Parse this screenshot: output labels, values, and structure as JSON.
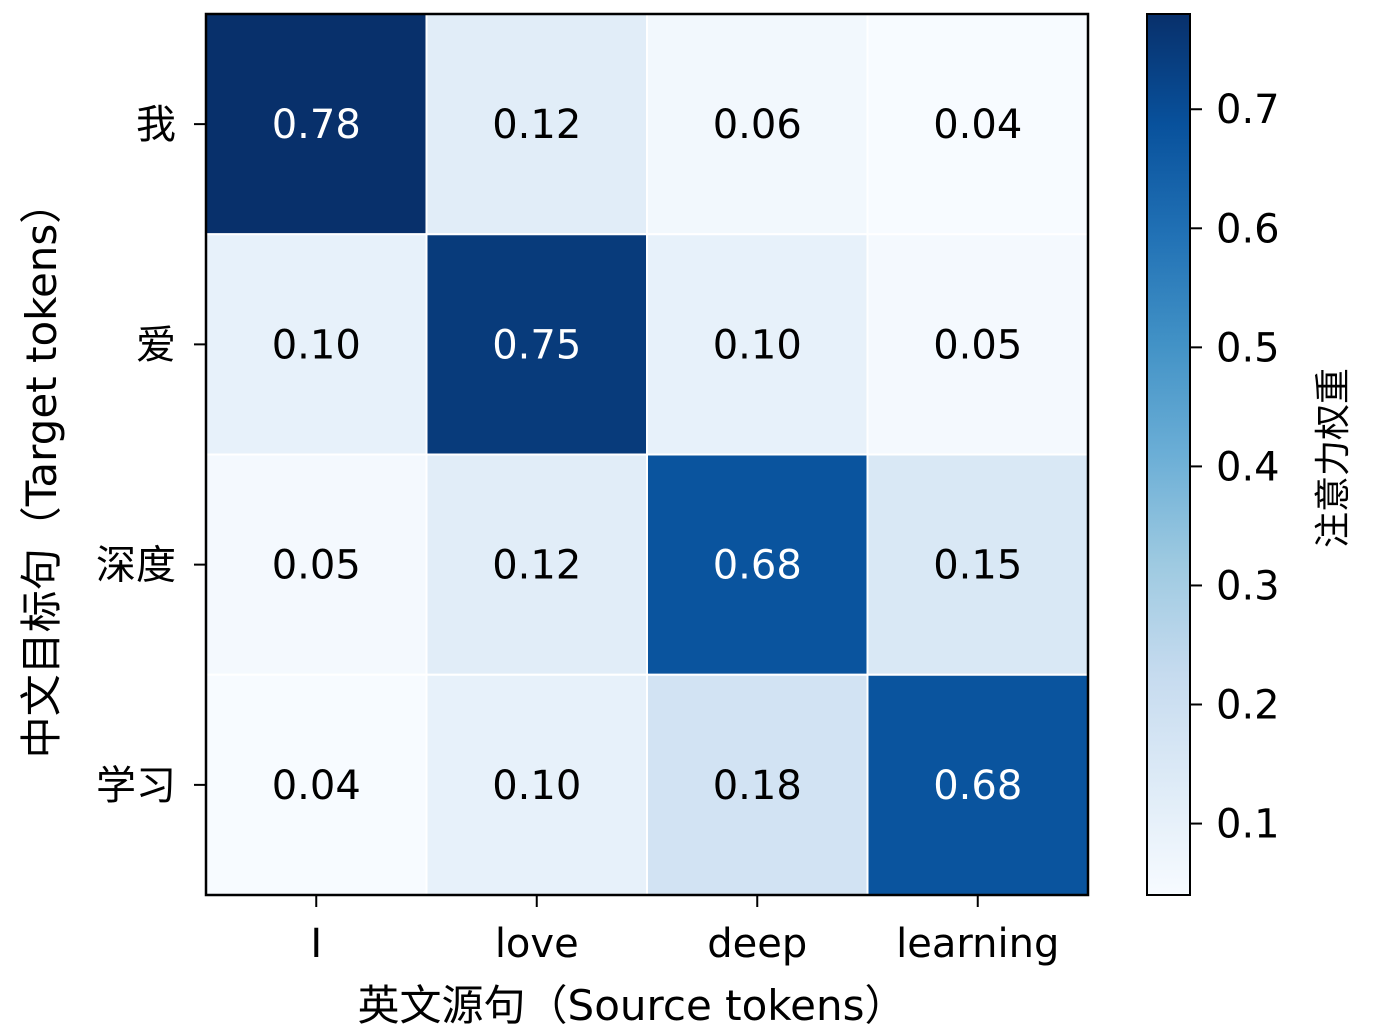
{
  "chart_data": {
    "type": "heatmap",
    "x_categories": [
      "I",
      "love",
      "deep",
      "learning"
    ],
    "y_categories": [
      "我",
      "爱",
      "深度",
      "学习"
    ],
    "values": [
      [
        0.78,
        0.12,
        0.06,
        0.04
      ],
      [
        0.1,
        0.75,
        0.1,
        0.05
      ],
      [
        0.05,
        0.12,
        0.68,
        0.15
      ],
      [
        0.04,
        0.1,
        0.18,
        0.68
      ]
    ],
    "value_labels": [
      [
        "0.78",
        "0.12",
        "0.06",
        "0.04"
      ],
      [
        "0.10",
        "0.75",
        "0.10",
        "0.05"
      ],
      [
        "0.05",
        "0.12",
        "0.68",
        "0.15"
      ],
      [
        "0.04",
        "0.10",
        "0.18",
        "0.68"
      ]
    ],
    "xlabel": "英文源句（Source tokens）",
    "ylabel": "中文目标句（Target tokens）",
    "colormap": "Blues",
    "colorbar": {
      "label": "注意力权重",
      "range": [
        0.04,
        0.78
      ],
      "ticks": [
        0.1,
        0.2,
        0.3,
        0.4,
        0.5,
        0.6,
        0.7
      ],
      "tick_labels": [
        "0.1",
        "0.2",
        "0.3",
        "0.4",
        "0.5",
        "0.6",
        "0.7"
      ]
    },
    "grid": false
  }
}
